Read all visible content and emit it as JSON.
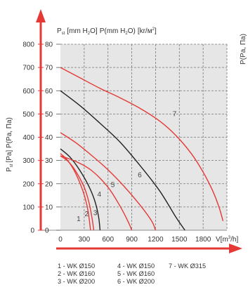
{
  "chart_data": {
    "type": "line",
    "plot_title": {
      "p_st": "P",
      "p_st_sub": "st",
      "unit1_a": "[mm H",
      "unit1_sub": "2",
      "unit1_b": "O]",
      "p2_a": "P(mm H",
      "p2_sub": "2",
      "p2_b": "O)",
      "p3_a": "[kr/м",
      "p3_sup": "2",
      "p3_b": "]"
    },
    "ylabel": {
      "p_a": "P",
      "p_sub": "st",
      "rest": "[Pa] P(Pa, Па)"
    },
    "xlabel": {
      "a": "V[m",
      "sup": "3",
      "b": "/h]"
    },
    "right_clip_label": "P(Pa, Па)",
    "xlim": [
      0,
      2100
    ],
    "ylim": [
      0,
      800
    ],
    "x_ticks": [
      "0",
      "300",
      "600",
      "900",
      "1200",
      "1500",
      "1800"
    ],
    "y_ticks_left": [
      "0",
      "100",
      "200",
      "300",
      "400",
      "500",
      "600",
      "700",
      "800"
    ],
    "y_ticks_right": [
      "0",
      "10",
      "20",
      "30",
      "40",
      "50",
      "60",
      "70",
      "80"
    ],
    "series": [
      {
        "label": "1",
        "color": "#e53935",
        "points": [
          [
            0,
            330
          ],
          [
            80,
            305
          ],
          [
            160,
            265
          ],
          [
            250,
            200
          ],
          [
            310,
            140
          ],
          [
            350,
            80
          ],
          [
            380,
            0
          ]
        ]
      },
      {
        "label": "2",
        "color": "#e53935",
        "points": [
          [
            0,
            320
          ],
          [
            100,
            295
          ],
          [
            200,
            250
          ],
          [
            300,
            185
          ],
          [
            360,
            120
          ],
          [
            400,
            50
          ],
          [
            420,
            0
          ]
        ]
      },
      {
        "label": "3",
        "color": "#222222",
        "points": [
          [
            0,
            350
          ],
          [
            120,
            315
          ],
          [
            240,
            260
          ],
          [
            350,
            195
          ],
          [
            430,
            130
          ],
          [
            480,
            60
          ],
          [
            500,
            0
          ]
        ]
      },
      {
        "label": "4",
        "color": "#e53935",
        "points": [
          [
            0,
            320
          ],
          [
            200,
            295
          ],
          [
            400,
            255
          ],
          [
            600,
            185
          ],
          [
            750,
            105
          ],
          [
            850,
            40
          ],
          [
            900,
            0
          ]
        ]
      },
      {
        "label": "5",
        "color": "#e53935",
        "points": [
          [
            0,
            420
          ],
          [
            200,
            375
          ],
          [
            400,
            320
          ],
          [
            600,
            260
          ],
          [
            800,
            190
          ],
          [
            1000,
            110
          ],
          [
            1150,
            40
          ],
          [
            1200,
            0
          ]
        ]
      },
      {
        "label": "6",
        "color": "#222222",
        "points": [
          [
            0,
            600
          ],
          [
            250,
            535
          ],
          [
            500,
            460
          ],
          [
            750,
            380
          ],
          [
            1000,
            280
          ],
          [
            1250,
            170
          ],
          [
            1450,
            60
          ],
          [
            1570,
            0
          ]
        ]
      },
      {
        "label": "7",
        "color": "#e53935",
        "points": [
          [
            0,
            700
          ],
          [
            250,
            655
          ],
          [
            500,
            610
          ],
          [
            750,
            570
          ],
          [
            1000,
            525
          ],
          [
            1250,
            470
          ],
          [
            1450,
            410
          ],
          [
            1650,
            330
          ],
          [
            1800,
            250
          ],
          [
            1920,
            170
          ],
          [
            2000,
            100
          ],
          [
            2050,
            40
          ]
        ]
      }
    ],
    "curve_labels": [
      {
        "text": "1",
        "x": 230,
        "y": 40
      },
      {
        "text": "2",
        "x": 330,
        "y": 60
      },
      {
        "text": "3",
        "x": 440,
        "y": 65
      },
      {
        "text": "4",
        "x": 490,
        "y": 145
      },
      {
        "text": "5",
        "x": 660,
        "y": 185
      },
      {
        "text": "6",
        "x": 1000,
        "y": 228
      },
      {
        "text": "7",
        "x": 1440,
        "y": 490
      }
    ],
    "legend": [
      [
        "1 - WK Ø150",
        "2 - WK Ø160",
        "3 - WK Ø200"
      ],
      [
        "4 - WK Ø150",
        "5 - WK Ø160",
        "6 - WK Ø200"
      ],
      [
        "7 - WK Ø315"
      ]
    ],
    "colors": {
      "axis": "#e53935",
      "shade": "#e6e6e6",
      "grid": "#777777"
    }
  }
}
